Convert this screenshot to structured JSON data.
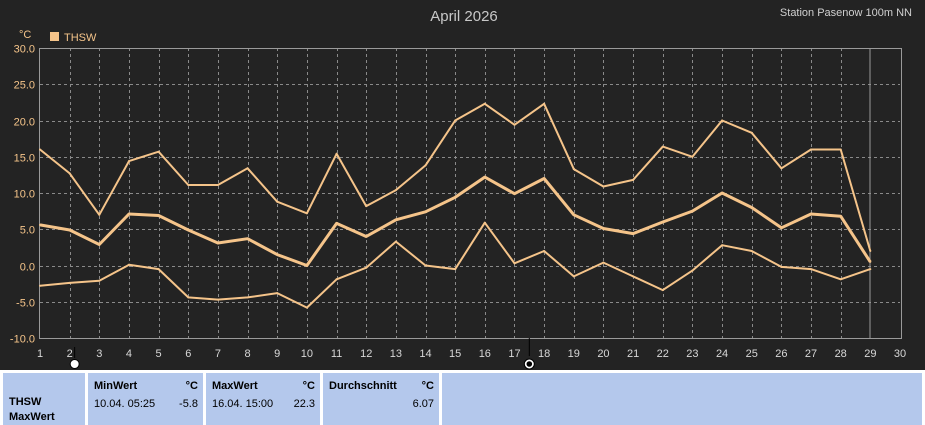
{
  "header": {
    "title": "April 2026",
    "station": "Station Pasenow 100m NN",
    "unit": "°C"
  },
  "chart_data": {
    "type": "line",
    "title": "April 2026",
    "ylabel": "°C",
    "xlabel": "",
    "xlim": [
      1,
      30
    ],
    "ylim": [
      -10,
      30
    ],
    "x_ticks": [
      1,
      2,
      3,
      4,
      5,
      6,
      7,
      8,
      9,
      10,
      11,
      12,
      13,
      14,
      15,
      16,
      17,
      18,
      19,
      20,
      21,
      22,
      23,
      24,
      25,
      26,
      27,
      28,
      29,
      30
    ],
    "y_ticks": [
      -10,
      -5,
      0,
      5,
      10,
      15,
      20,
      25,
      30
    ],
    "y_tick_labels": [
      "-10.0",
      "-5.0",
      "0.0",
      "5.0",
      "10.0",
      "15.0",
      "20.0",
      "25.0",
      "30.0"
    ],
    "grid": true,
    "legend": {
      "position": "top-left",
      "entries": [
        "THSW"
      ]
    },
    "color": "#f5c48a",
    "series": [
      {
        "name": "THSW",
        "role": "max",
        "x": [
          1,
          2,
          3,
          4,
          5,
          6,
          7,
          8,
          9,
          10,
          11,
          12,
          13,
          14,
          15,
          16,
          17,
          18,
          19,
          20,
          21,
          22,
          23,
          24,
          25,
          26,
          27,
          28,
          29
        ],
        "values": [
          16.0,
          12.7,
          7.0,
          14.4,
          15.7,
          11.1,
          11.1,
          13.4,
          8.8,
          7.2,
          15.4,
          8.2,
          10.4,
          13.8,
          20.0,
          22.3,
          19.4,
          22.3,
          13.3,
          10.9,
          11.8,
          16.4,
          15.0,
          20.0,
          18.3,
          13.4,
          16.0,
          16.0,
          2.0
        ]
      },
      {
        "name": "THSW",
        "role": "avg",
        "x": [
          1,
          2,
          3,
          4,
          5,
          6,
          7,
          8,
          9,
          10,
          11,
          12,
          13,
          14,
          15,
          16,
          17,
          18,
          19,
          20,
          21,
          22,
          23,
          24,
          25,
          26,
          27,
          28,
          29
        ],
        "values": [
          5.6,
          4.9,
          2.9,
          7.1,
          6.9,
          4.9,
          3.1,
          3.7,
          1.5,
          0.0,
          5.8,
          4.0,
          6.3,
          7.4,
          9.4,
          12.2,
          9.9,
          12.0,
          7.0,
          5.1,
          4.4,
          6.0,
          7.5,
          10.0,
          8.0,
          5.2,
          7.1,
          6.8,
          0.5
        ]
      },
      {
        "name": "THSW",
        "role": "min",
        "x": [
          1,
          2,
          3,
          4,
          5,
          6,
          7,
          8,
          9,
          10,
          11,
          12,
          13,
          14,
          15,
          16,
          17,
          18,
          19,
          20,
          21,
          22,
          23,
          24,
          25,
          26,
          27,
          28,
          29
        ],
        "values": [
          -2.8,
          -2.4,
          -2.1,
          0.1,
          -0.5,
          -4.4,
          -4.7,
          -4.4,
          -3.8,
          -5.8,
          -1.9,
          -0.3,
          3.3,
          0.0,
          -0.5,
          5.9,
          0.3,
          2.0,
          -1.5,
          0.4,
          -1.5,
          -3.4,
          -0.7,
          2.8,
          2.0,
          -0.2,
          -0.5,
          -1.9,
          -0.5
        ]
      }
    ],
    "markers": [
      {
        "x": 2,
        "icon": "full-moon-icon"
      },
      {
        "x": 17.5,
        "icon": "new-moon-icon"
      }
    ]
  },
  "stats": {
    "name": "THSW",
    "subtitle": "MaxWert",
    "min": {
      "label": "MinWert",
      "unit": "°C",
      "datetime": "10.04.  05:25",
      "value": "-5.8"
    },
    "max": {
      "label": "MaxWert",
      "unit": "°C",
      "datetime": "16.04.  15:00",
      "value": "22.3"
    },
    "avg": {
      "label": "Durchschnitt",
      "unit": "°C",
      "value": "6.07"
    }
  }
}
